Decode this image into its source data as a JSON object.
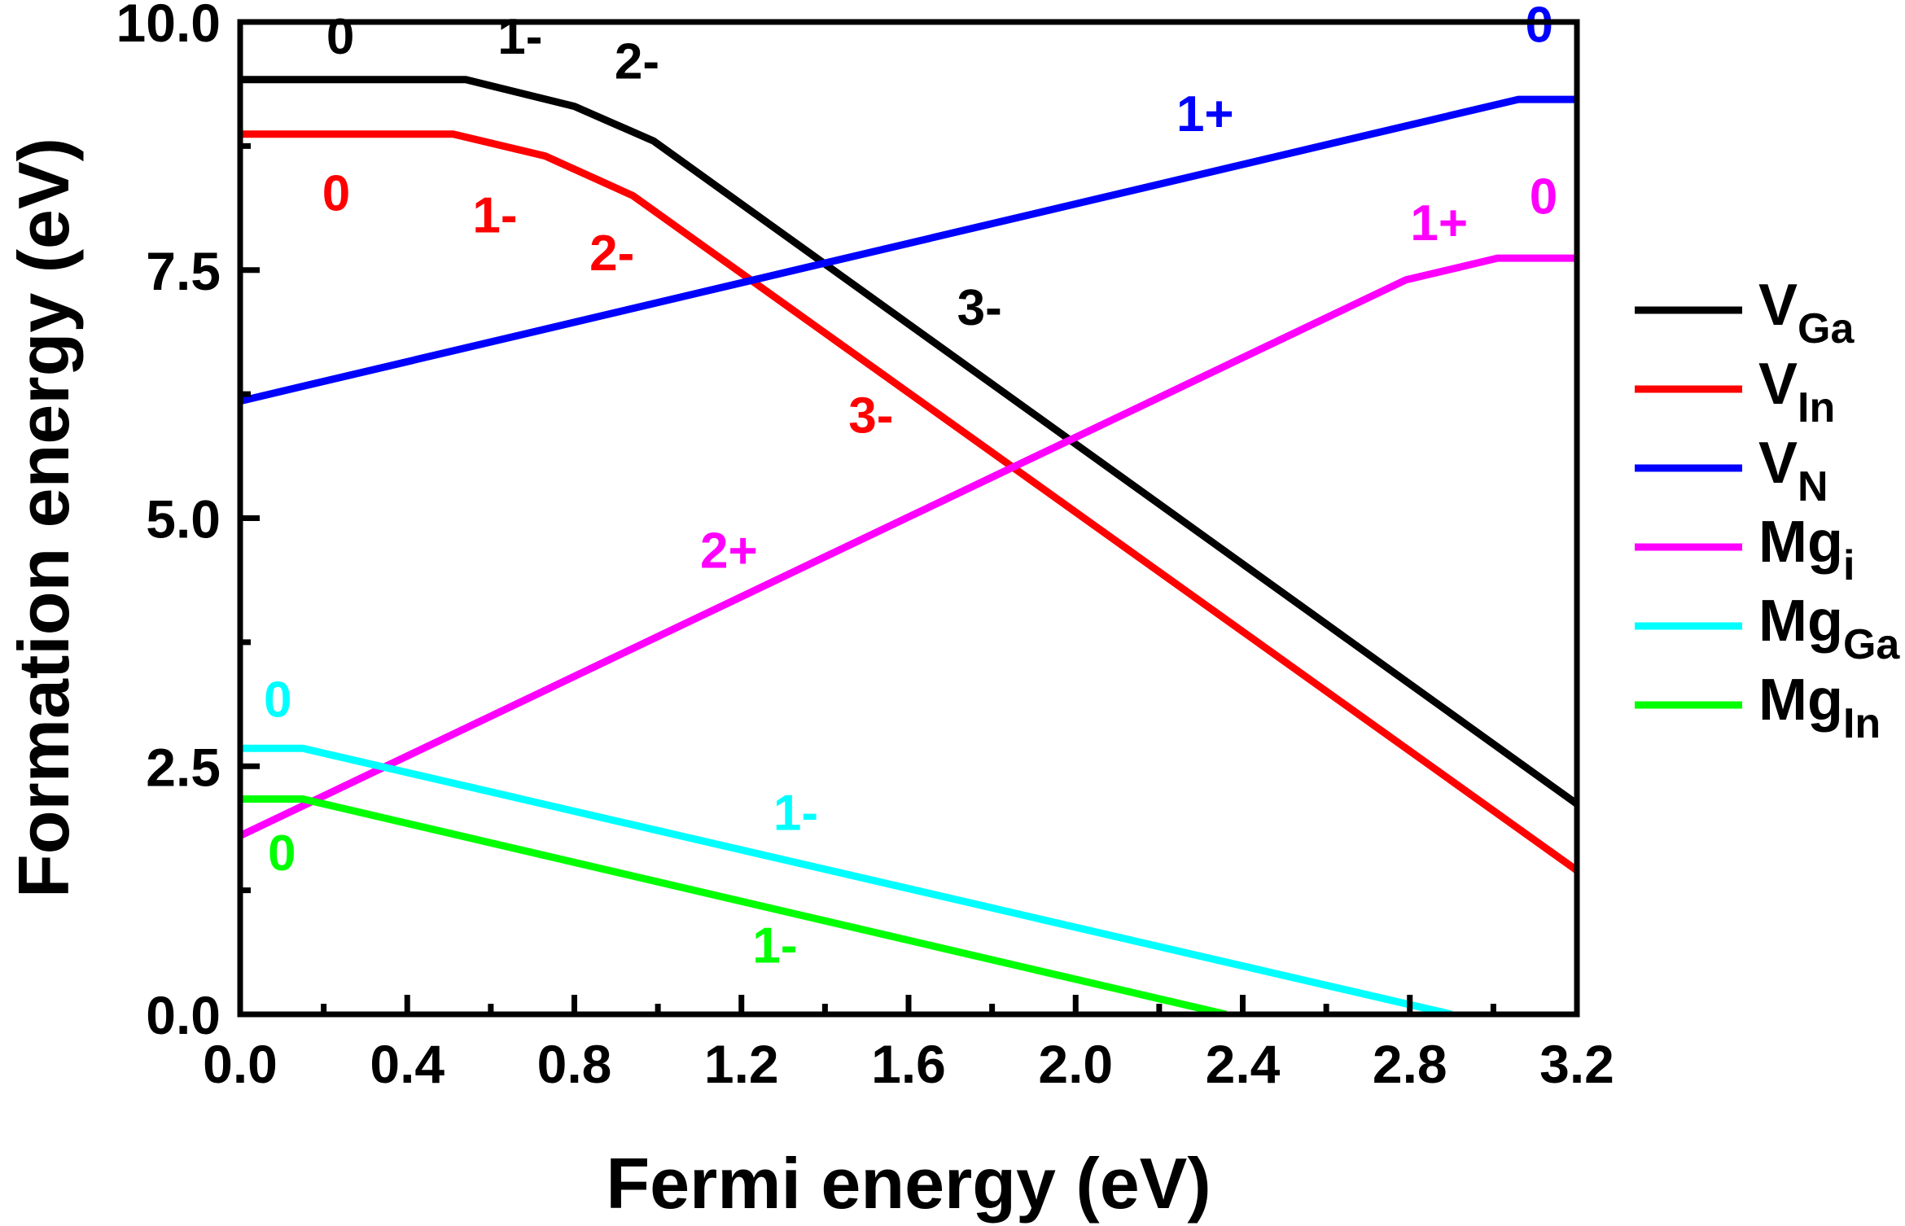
{
  "chart_data": {
    "type": "line",
    "title": "",
    "xlabel": "Fermi energy (eV)",
    "ylabel": "Formation energy (eV)",
    "xlim": [
      0.0,
      3.2
    ],
    "ylim": [
      0.0,
      10.0
    ],
    "xticks": [
      0.0,
      0.4,
      0.8,
      1.2,
      1.6,
      2.0,
      2.4,
      2.8,
      3.2
    ],
    "xtick_labels": [
      "0.0",
      "0.4",
      "0.8",
      "1.2",
      "1.6",
      "2.0",
      "2.4",
      "2.8",
      "3.2"
    ],
    "yticks": [
      0.0,
      2.5,
      5.0,
      7.5,
      10.0
    ],
    "ytick_labels": [
      "0.0",
      "2.5",
      "5.0",
      "7.5",
      "10.0"
    ],
    "legend_position": "right",
    "series": [
      {
        "name": "V_Ga",
        "legend_main": "V",
        "legend_sub": "Ga",
        "color": "#000000",
        "x": [
          0.0,
          0.54,
          0.8,
          0.99,
          3.2
        ],
        "y": [
          9.42,
          9.42,
          9.15,
          8.8,
          2.12
        ],
        "state_labels": [
          {
            "text": "0",
            "x": 0.24,
            "y": 9.68
          },
          {
            "text": "1-",
            "x": 0.67,
            "y": 9.68
          },
          {
            "text": "2-",
            "x": 0.95,
            "y": 9.43
          },
          {
            "text": "3-",
            "x": 1.77,
            "y": 6.95
          }
        ]
      },
      {
        "name": "V_In",
        "legend_main": "V",
        "legend_sub": "In",
        "color": "#ff0000",
        "x": [
          0.0,
          0.51,
          0.73,
          0.94,
          3.2
        ],
        "y": [
          8.87,
          8.87,
          8.65,
          8.25,
          1.45
        ],
        "state_labels": [
          {
            "text": "0",
            "x": 0.23,
            "y": 8.1
          },
          {
            "text": "1-",
            "x": 0.61,
            "y": 7.88
          },
          {
            "text": "2-",
            "x": 0.89,
            "y": 7.5
          },
          {
            "text": "3-",
            "x": 1.51,
            "y": 5.86
          }
        ]
      },
      {
        "name": "V_N",
        "legend_main": "V",
        "legend_sub": "N",
        "color": "#0000ff",
        "x": [
          0.0,
          3.06,
          3.2
        ],
        "y": [
          6.18,
          9.22,
          9.22
        ],
        "state_labels": [
          {
            "text": "0",
            "x": 3.11,
            "y": 9.8
          },
          {
            "text": "1+",
            "x": 2.31,
            "y": 8.9
          }
        ]
      },
      {
        "name": "Mg_i",
        "legend_main": "Mg",
        "legend_sub": "i",
        "color": "#ff00ff",
        "x": [
          0.0,
          2.79,
          3.01,
          3.2
        ],
        "y": [
          1.8,
          7.4,
          7.62,
          7.62
        ],
        "state_labels": [
          {
            "text": "0",
            "x": 3.12,
            "y": 8.07
          },
          {
            "text": "1+",
            "x": 2.87,
            "y": 7.8
          },
          {
            "text": "2+",
            "x": 1.17,
            "y": 4.5
          }
        ]
      },
      {
        "name": "Mg_Ga",
        "legend_main": "Mg",
        "legend_sub": "Ga",
        "color": "#00ffff",
        "x": [
          0.0,
          0.15,
          2.9
        ],
        "y": [
          2.68,
          2.68,
          0.0
        ],
        "state_labels": [
          {
            "text": "0",
            "x": 0.09,
            "y": 3.0
          },
          {
            "text": "1-",
            "x": 1.33,
            "y": 1.86
          }
        ]
      },
      {
        "name": "Mg_In",
        "legend_main": "Mg",
        "legend_sub": "In",
        "color": "#00ff00",
        "x": [
          0.0,
          0.15,
          2.36
        ],
        "y": [
          2.17,
          2.17,
          0.0
        ],
        "state_labels": [
          {
            "text": "0",
            "x": 0.1,
            "y": 1.45
          },
          {
            "text": "1-",
            "x": 1.28,
            "y": 0.52
          }
        ]
      }
    ]
  }
}
